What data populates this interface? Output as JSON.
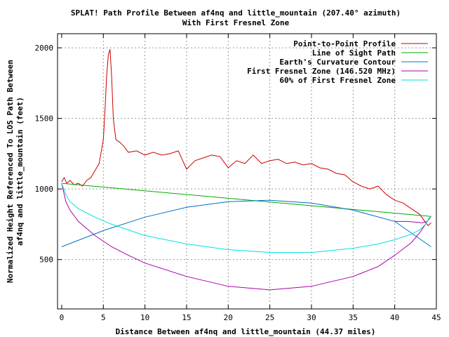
{
  "chart_data": {
    "type": "line",
    "title": "SPLAT! Path Profile Between af4nq and little_mountain (207.40° azimuth)",
    "subtitle": "With First Fresnel Zone",
    "xlabel": "Distance Between af4nq and little_mountain (44.37 miles)",
    "ylabel_line1": "Normalized Height Referenced To LOS Path Between",
    "ylabel_line2": "af4nq and little_mountain (feet)",
    "xlim": [
      -0.5,
      45
    ],
    "ylim": [
      150,
      2100
    ],
    "xticks": [
      0,
      5,
      10,
      15,
      20,
      25,
      30,
      35,
      40,
      45
    ],
    "yticks": [
      500,
      1000,
      1500,
      2000
    ],
    "grid": true,
    "legend_position": "top-right",
    "series": [
      {
        "name": "Point-to-Point Profile",
        "color": "#cc0000",
        "x": [
          0,
          0.3,
          0.6,
          1,
          1.5,
          2,
          2.5,
          3,
          3.5,
          4,
          4.5,
          5,
          5.2,
          5.4,
          5.6,
          5.8,
          6,
          6.2,
          6.5,
          7,
          7.5,
          8,
          9,
          10,
          11,
          12,
          13,
          14,
          15,
          16,
          17,
          18,
          19,
          20,
          21,
          22,
          23,
          24,
          25,
          26,
          27,
          28,
          29,
          30,
          31,
          32,
          33,
          34,
          35,
          36,
          37,
          38,
          39,
          40,
          41,
          42,
          43,
          43.5,
          44,
          44.37
        ],
        "y": [
          1050,
          1080,
          1040,
          1060,
          1030,
          1040,
          1020,
          1060,
          1080,
          1130,
          1180,
          1350,
          1550,
          1800,
          1950,
          1990,
          1800,
          1500,
          1350,
          1330,
          1300,
          1260,
          1270,
          1240,
          1260,
          1240,
          1250,
          1270,
          1140,
          1200,
          1220,
          1240,
          1230,
          1150,
          1200,
          1180,
          1240,
          1180,
          1200,
          1210,
          1180,
          1190,
          1170,
          1180,
          1150,
          1140,
          1110,
          1100,
          1050,
          1020,
          1000,
          1020,
          960,
          920,
          900,
          860,
          820,
          780,
          740,
          760
        ]
      },
      {
        "name": "Line of Sight Path",
        "color": "#00aa00",
        "x": [
          0,
          44.37
        ],
        "y": [
          1040,
          805
        ]
      },
      {
        "name": "Earth's Curvature Contour",
        "color": "#0070c0",
        "x": [
          0,
          5,
          10,
          15,
          20,
          25,
          30,
          35,
          40,
          44.37
        ],
        "y": [
          590,
          705,
          800,
          870,
          910,
          920,
          900,
          850,
          770,
          590
        ]
      },
      {
        "name": "First Fresnel Zone (146.520 MHz)",
        "color": "#aa00aa",
        "x": [
          0,
          0.5,
          1,
          2,
          4,
          6,
          8,
          10,
          15,
          20,
          25,
          30,
          35,
          38,
          40,
          42,
          43,
          43.7,
          44.1,
          44.37
        ],
        "y": [
          1040,
          910,
          850,
          770,
          670,
          590,
          530,
          475,
          380,
          310,
          285,
          310,
          380,
          450,
          530,
          620,
          690,
          750,
          790,
          805
        ],
        "upper_x": [
          40,
          41.5,
          42.5,
          43.3,
          43.9,
          44.37
        ],
        "upper_y": [
          770,
          770,
          765,
          760,
          770,
          805
        ]
      },
      {
        "name": "60% of First Fresnel Zone",
        "color": "#00e0e0",
        "x": [
          0,
          0.5,
          1,
          2,
          4,
          6,
          8,
          10,
          15,
          20,
          25,
          30,
          35,
          38,
          40,
          42,
          43,
          43.7,
          44.1,
          44.37
        ],
        "y": [
          1040,
          960,
          910,
          860,
          800,
          750,
          710,
          670,
          610,
          570,
          550,
          550,
          580,
          610,
          640,
          680,
          710,
          750,
          790,
          805
        ]
      }
    ]
  }
}
